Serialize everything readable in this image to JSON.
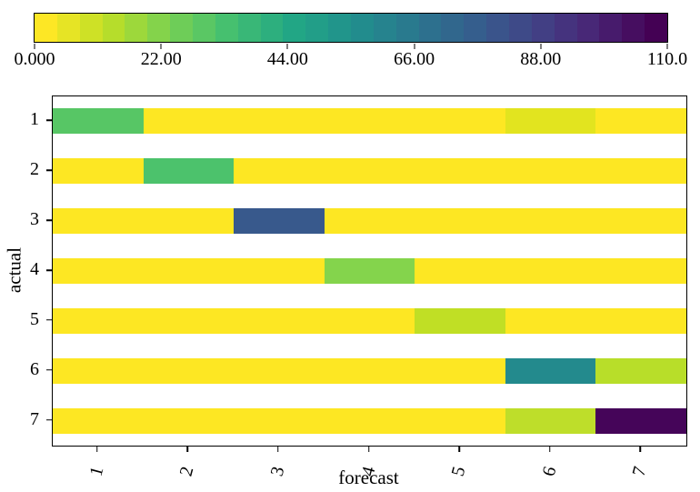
{
  "chart_data": {
    "type": "heatmap",
    "title": "",
    "xlabel": "forecast",
    "ylabel": "actual",
    "x_tick_labels": [
      "1",
      "2",
      "3",
      "4",
      "5",
      "6",
      "7"
    ],
    "y_tick_labels": [
      "1",
      "2",
      "3",
      "4",
      "5",
      "6",
      "7"
    ],
    "x_tick_rotation_deg": -75,
    "grid": false,
    "axis_color": "#000000",
    "base_color": "#fde723",
    "colorbar": {
      "min": 0,
      "max": 110,
      "tick_labels": [
        "0.000",
        "22.00",
        "44.00",
        "66.00",
        "88.00",
        "110.0"
      ],
      "colormap": "viridis-reversed",
      "segment_colors": [
        "#fde725",
        "#e6e425",
        "#cee126",
        "#b6dd2b",
        "#9dd83b",
        "#84d34b",
        "#6ecd58",
        "#5ac764",
        "#46c06f",
        "#39b777",
        "#2daf7e",
        "#22a685",
        "#229e88",
        "#21958b",
        "#228c8d",
        "#26838e",
        "#297a8e",
        "#2d708e",
        "#31678d",
        "#355e8d",
        "#3a548b",
        "#3e4a88",
        "#423f84",
        "#45337e",
        "#482877",
        "#471b6c",
        "#460e60",
        "#440154"
      ]
    },
    "rows": [
      {
        "actual": "1",
        "values": [
          33,
          0,
          0,
          0,
          0,
          5,
          0
        ],
        "colors": [
          "#57c665",
          "#fde723",
          "#fde723",
          "#fde723",
          "#fde723",
          "#e2e41f",
          "#fde723"
        ]
      },
      {
        "actual": "2",
        "values": [
          0,
          34,
          0,
          0,
          0,
          0,
          0
        ],
        "colors": [
          "#fde723",
          "#4cc26c",
          "#fde723",
          "#fde723",
          "#fde723",
          "#fde723",
          "#fde723"
        ]
      },
      {
        "actual": "3",
        "values": [
          0,
          0,
          80,
          0,
          0,
          0,
          0
        ],
        "colors": [
          "#fde723",
          "#fde723",
          "#38598c",
          "#fde723",
          "#fde723",
          "#fde723",
          "#fde723"
        ]
      },
      {
        "actual": "4",
        "values": [
          0,
          0,
          0,
          22,
          0,
          0,
          0
        ],
        "colors": [
          "#fde723",
          "#fde723",
          "#fde723",
          "#84d44c",
          "#fde723",
          "#fde723",
          "#fde723"
        ]
      },
      {
        "actual": "5",
        "values": [
          0,
          0,
          0,
          0,
          12,
          0,
          0
        ],
        "colors": [
          "#fde723",
          "#fde723",
          "#fde723",
          "#fde723",
          "#c0df25",
          "#fde723",
          "#fde723"
        ]
      },
      {
        "actual": "6",
        "values": [
          0,
          0,
          0,
          0,
          0,
          58,
          13
        ],
        "colors": [
          "#fde723",
          "#fde723",
          "#fde723",
          "#fde723",
          "#fde723",
          "#238a8d",
          "#b8de29"
        ]
      },
      {
        "actual": "7",
        "values": [
          0,
          0,
          0,
          0,
          0,
          13,
          108
        ],
        "colors": [
          "#fde723",
          "#fde723",
          "#fde723",
          "#fde723",
          "#fde723",
          "#bede2a",
          "#450559"
        ]
      }
    ]
  }
}
